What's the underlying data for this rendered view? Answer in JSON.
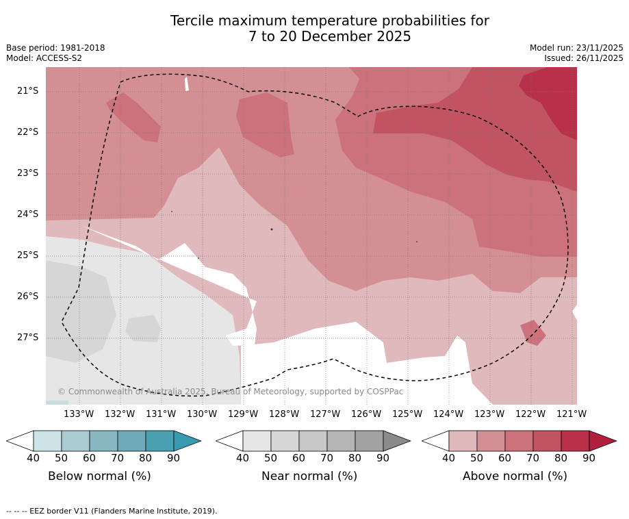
{
  "title_line1": "Tercile maximum temperature probabilities for",
  "title_line2": "7 to 20 December 2025",
  "meta_left": {
    "base_period": "Base period: 1981-2018",
    "model": "Model: ACCESS-S2"
  },
  "meta_right": {
    "model_run": "Model run: 23/11/2025",
    "issued": "Issued: 26/11/2025"
  },
  "lat_labels": [
    "21°S",
    "22°S",
    "23°S",
    "24°S",
    "25°S",
    "26°S",
    "27°S"
  ],
  "lon_labels": [
    "133°W",
    "132°W",
    "131°W",
    "130°W",
    "129°W",
    "128°W",
    "127°W",
    "126°W",
    "125°W",
    "124°W",
    "123°W",
    "122°W",
    "121°W"
  ],
  "copyright": "© Commonwealth of Australia 2025, Bureau of Meteorology, supported by COSPPac",
  "colorbars": {
    "below": {
      "label": "Below normal (%)",
      "ticks": [
        "40",
        "50",
        "60",
        "70",
        "80",
        "90"
      ],
      "colors": [
        "#ffffff",
        "#cde3e8",
        "#a9cbd1",
        "#88b7c2",
        "#6eaab7",
        "#4a9fb0",
        "#3a9bb0"
      ]
    },
    "near": {
      "label": "Near normal (%)",
      "ticks": [
        "40",
        "50",
        "60",
        "70",
        "80",
        "90"
      ],
      "colors": [
        "#ffffff",
        "#e6e6e6",
        "#d6d6d6",
        "#c7c7c7",
        "#b5b5b5",
        "#a2a2a2",
        "#8a8a8a"
      ]
    },
    "above": {
      "label": "Above normal (%)",
      "ticks": [
        "40",
        "50",
        "60",
        "70",
        "80",
        "90"
      ],
      "colors": [
        "#ffffff",
        "#e0b9bd",
        "#d48f95",
        "#cc727c",
        "#c25462",
        "#b8304a",
        "#b01f3c"
      ]
    }
  },
  "footnote": "--  --  -- EEZ border V11 (Flanders Marine Institute, 2019)."
}
